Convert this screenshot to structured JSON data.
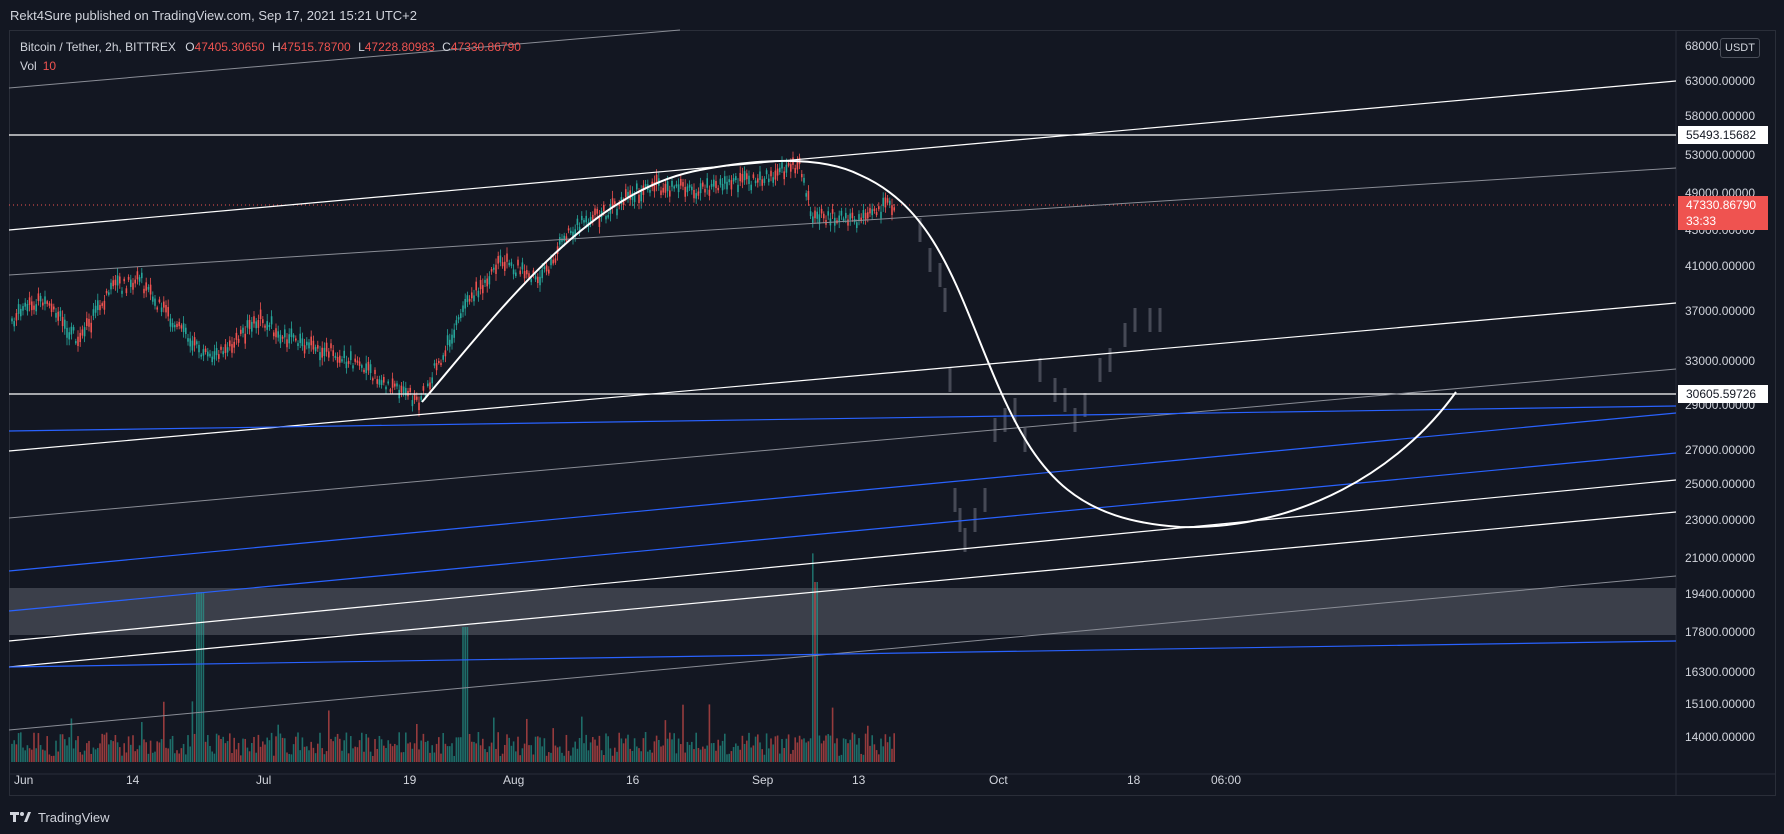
{
  "header": {
    "published": "Rekt4Sure published on TradingView.com, Sep 17, 2021 15:21 UTC+2"
  },
  "legend": {
    "symbol": "Bitcoin / Tether, 2h, BITTREX",
    "o_label": "O",
    "o_value": "47405.30650",
    "h_label": "H",
    "h_value": "47515.78700",
    "l_label": "L",
    "l_value": "47228.80983",
    "c_label": "C",
    "c_value": "47330.86790",
    "vol_label": "Vol",
    "vol_value": "10"
  },
  "price_axis": {
    "currency": "USDT",
    "ticks": [
      "68000.00000",
      "63000.00000",
      "58000.00000",
      "53000.00000",
      "49000.00000",
      "45000.00000",
      "41000.00000",
      "37000.00000",
      "33000.00000",
      "29000.00000",
      "27000.00000",
      "25000.00000",
      "23000.00000",
      "21000.00000",
      "19400.00000",
      "17800.00000",
      "16300.00000",
      "15100.00000",
      "14000.00000"
    ],
    "label_level_high": "55493.15682",
    "label_level_low": "30605.59726",
    "last_price": "47330.86790",
    "countdown": "33:33"
  },
  "time_axis": {
    "labels": [
      "Jun",
      "14",
      "Jul",
      "19",
      "Aug",
      "16",
      "Sep",
      "13",
      "Oct",
      "18",
      "06:00"
    ]
  },
  "footer": {
    "brand": "TradingView"
  },
  "colors": {
    "background": "#131722",
    "bull": "#26a69a",
    "bear": "#ef5350",
    "trendline_white": "#ffffff",
    "trendline_blue": "#2962ff",
    "zone": "#434651"
  }
}
